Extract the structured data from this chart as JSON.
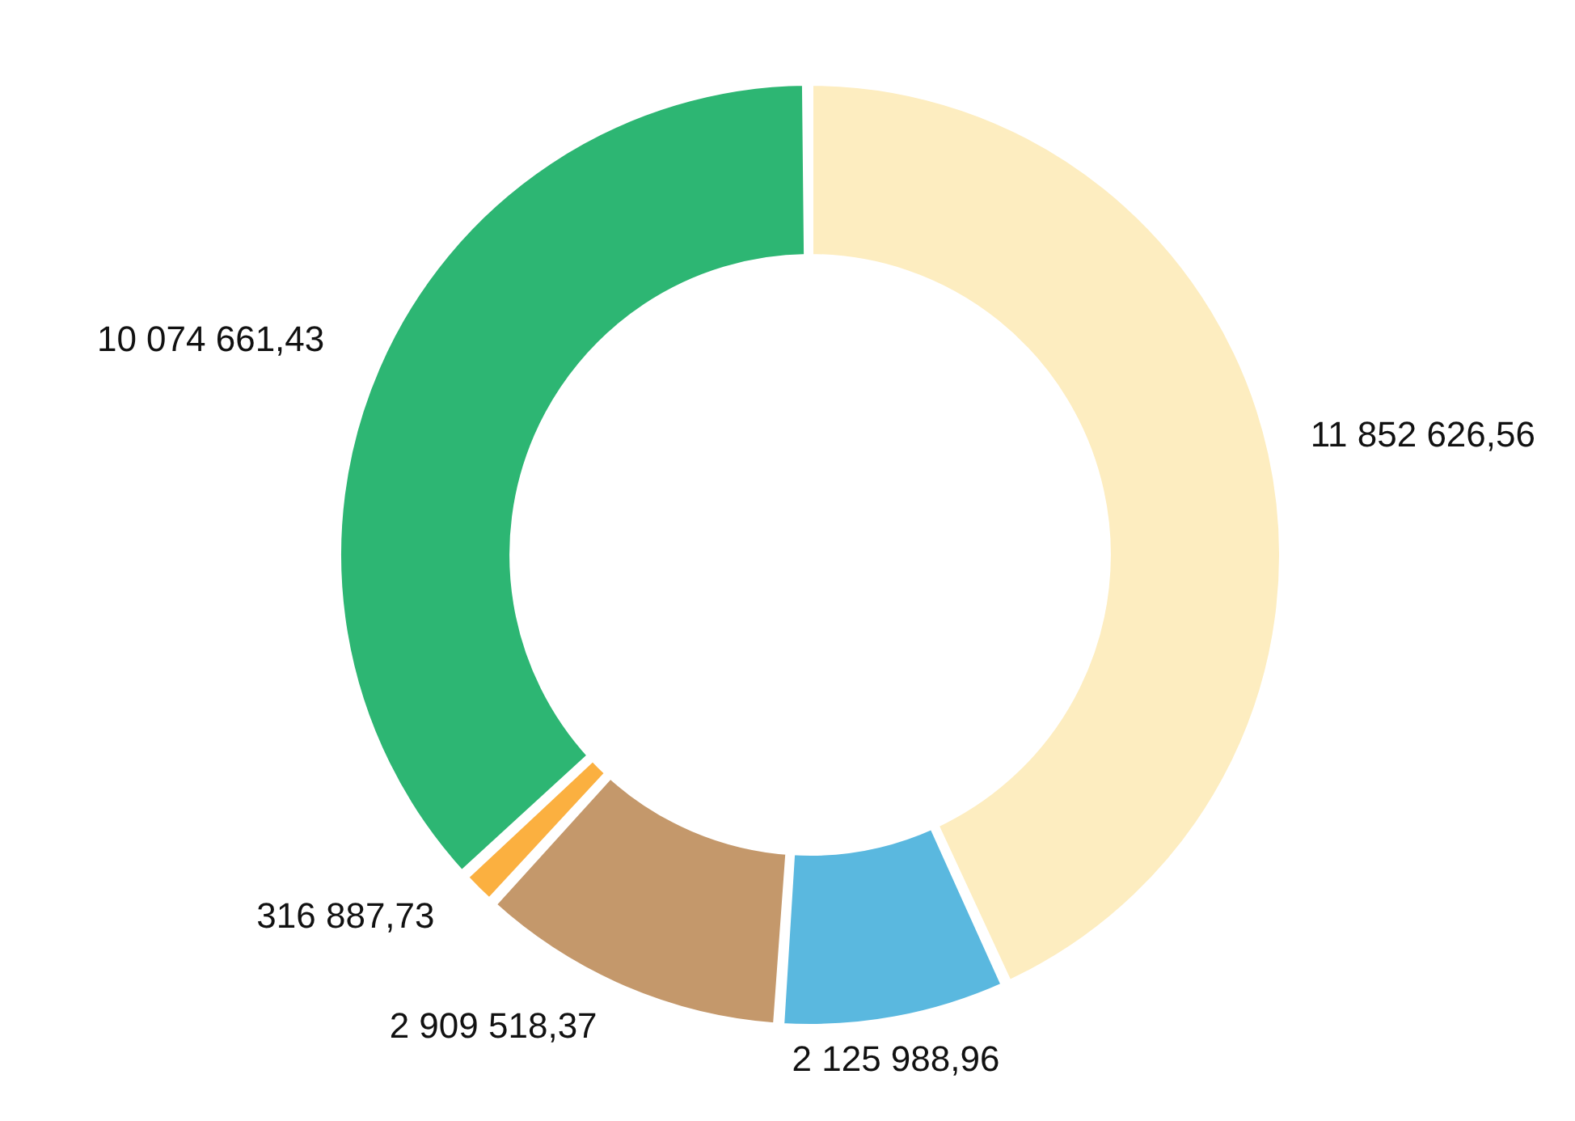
{
  "chart_data": {
    "type": "donut",
    "categories": [
      null,
      null,
      null,
      null,
      null
    ],
    "values": [
      11852626.56,
      2125988.96,
      2909518.37,
      316887.73,
      10074661.43
    ],
    "colors": [
      "#fdedc0",
      "#5ab8df",
      "#c4986b",
      "#fbb040",
      "#2db673"
    ],
    "value_labels": [
      "11 852 626,56",
      "2 125 988,96",
      "2 909 518,37",
      "316 887,73",
      "10 074 661,43"
    ],
    "legend": false
  }
}
